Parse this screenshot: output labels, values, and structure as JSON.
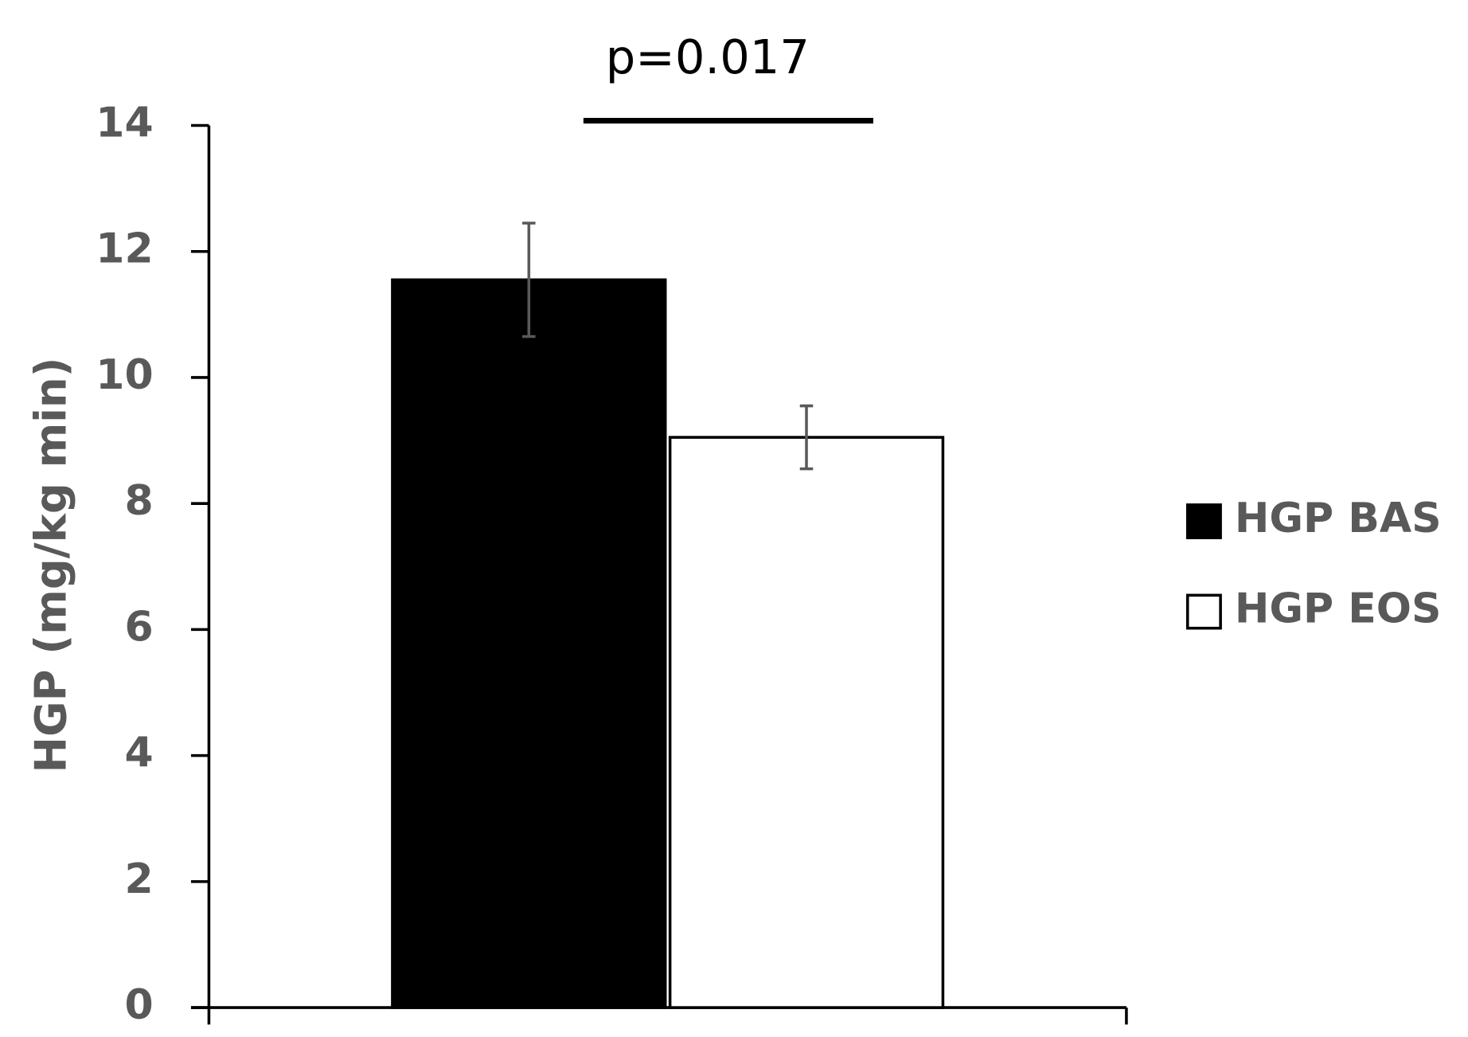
{
  "chart_data": {
    "type": "bar",
    "y_label": "HGP (mg/kg min)",
    "annotation": "p=0.017",
    "categories": [
      null
    ],
    "series": [
      {
        "name": "HGP BAS",
        "color": "#000000",
        "values": [
          11.55
        ],
        "errors": [
          0.9
        ]
      },
      {
        "name": "HGP EOS",
        "color": "#ffffff",
        "values": [
          9.05
        ],
        "errors": [
          0.5
        ]
      }
    ],
    "ylim": [
      0,
      14
    ],
    "yticks": [
      0,
      2,
      4,
      6,
      8,
      10,
      12,
      14
    ],
    "grid": false,
    "legend": "right"
  }
}
